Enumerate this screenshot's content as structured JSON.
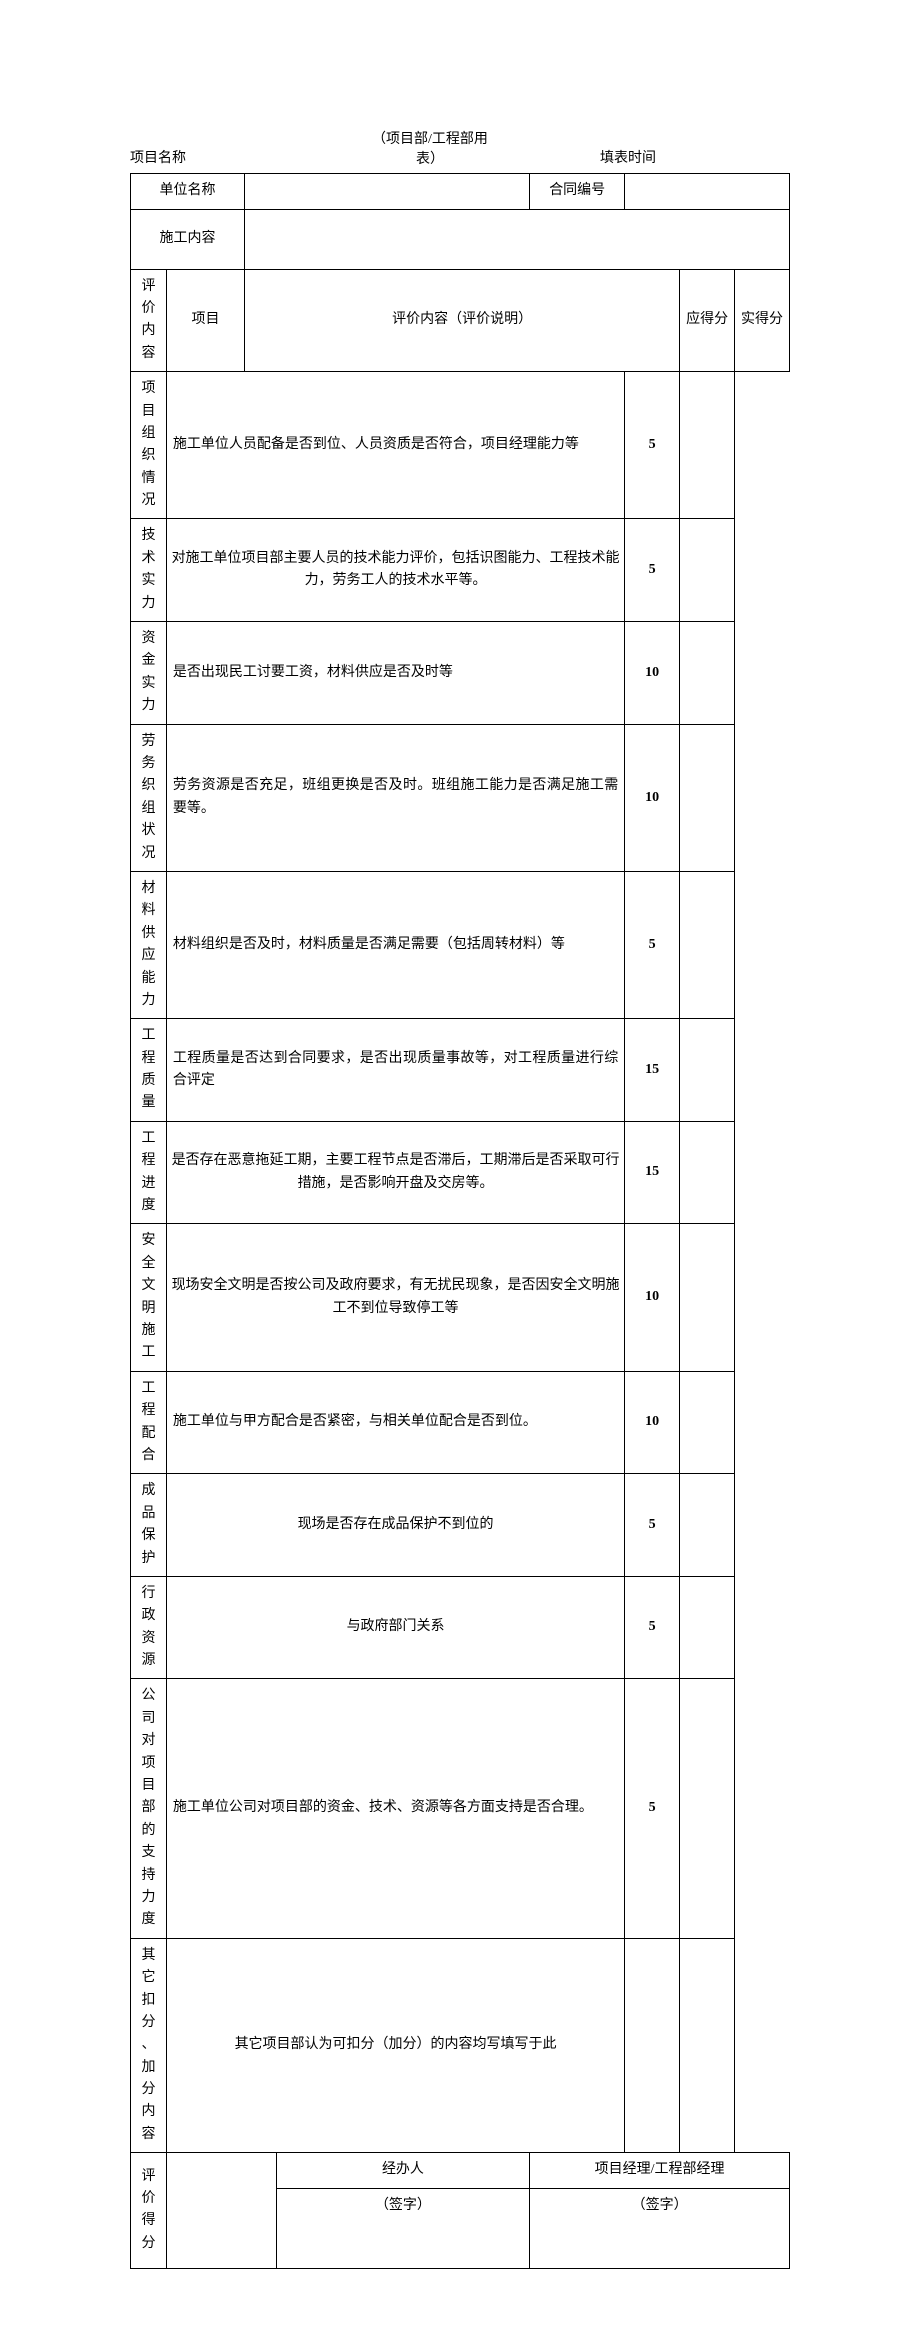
{
  "header": {
    "subtitle_l1": "（项目部/工程部用",
    "subtitle_l2": "表）",
    "project_name_label": "项目名称",
    "fill_time_label": "填表时间"
  },
  "top": {
    "unit_name_label": "单位名称",
    "contract_no_label": "合同编号",
    "construction_content_label": "施工内容"
  },
  "section_labels": {
    "eval_content": "评价\n内容",
    "eval_score": "评价\n得分"
  },
  "cols": {
    "item": "项目",
    "desc": "评价内容（评价说明）",
    "max": "应得分",
    "actual": "实得分"
  },
  "rows": [
    {
      "item": "项目组织情况",
      "desc": "施工单位人员配备是否到位、人员资质是否符合，项目经理能力等",
      "max": "5",
      "bold": true,
      "align": "j"
    },
    {
      "item": "技术实力",
      "desc": "对施工单位项目部主要人员的技术能力评价，包括识图能力、工程技术能力，劳务工人的技术水平等。",
      "max": "5",
      "bold": true,
      "align": "c"
    },
    {
      "item": "资金实力",
      "desc": "是否出现民工讨要工资，材料供应是否及时等",
      "max": "10",
      "bold": true,
      "align": "j"
    },
    {
      "item": "劳务织组状况",
      "desc": "劳务资源是否充足，班组更换是否及时。班组施工能力是否满足施工需要等。",
      "max": "10",
      "bold": true,
      "align": "j"
    },
    {
      "item": "材料供应能力",
      "desc": "材料组织是否及时，材料质量是否满足需要（包括周转材料）等",
      "max": "5",
      "bold": true,
      "align": "j"
    },
    {
      "item": "工程质量",
      "desc": "工程质量是否达到合同要求，是否出现质量事故等，对工程质量进行综合评定",
      "max": "15",
      "bold": true,
      "align": "j"
    },
    {
      "item": "工程进度",
      "desc": "是否存在恶意拖延工期，主要工程节点是否滞后，工期滞后是否采取可行措施，是否影响开盘及交房等。",
      "max": "15",
      "bold": true,
      "align": "c"
    },
    {
      "item": "安全文明施工",
      "desc": "现场安全文明是否按公司及政府要求，有无扰民现象，是否因安全文明施工不到位导致停工等",
      "max": "10",
      "bold": true,
      "align": "c"
    },
    {
      "item": "工程配合",
      "desc": "施工单位与甲方配合是否紧密，与相关单位配合是否到位。",
      "max": "10",
      "bold": true,
      "align": "j"
    },
    {
      "item": "成品保护",
      "desc": "现场是否存在成品保护不到位的",
      "max": "5",
      "bold": true,
      "align": "c"
    },
    {
      "item": "行政资源",
      "desc": "与政府部门关系",
      "max": "5",
      "bold": true,
      "align": "c"
    },
    {
      "item": "公司对项目部的支持力度",
      "desc": "施工单位公司对项目部的资金、技术、资源等各方面支持是否合理。",
      "max": "5",
      "bold": true,
      "align": "j"
    },
    {
      "item": "其它扣分、加分内容",
      "desc": "其它项目部认为可扣分（加分）的内容均写填写于此",
      "max": "",
      "bold": false,
      "align": "c"
    }
  ],
  "sig": {
    "handler": "经办人",
    "manager": "项目经理/工程部经理",
    "sign": "（签字）"
  }
}
